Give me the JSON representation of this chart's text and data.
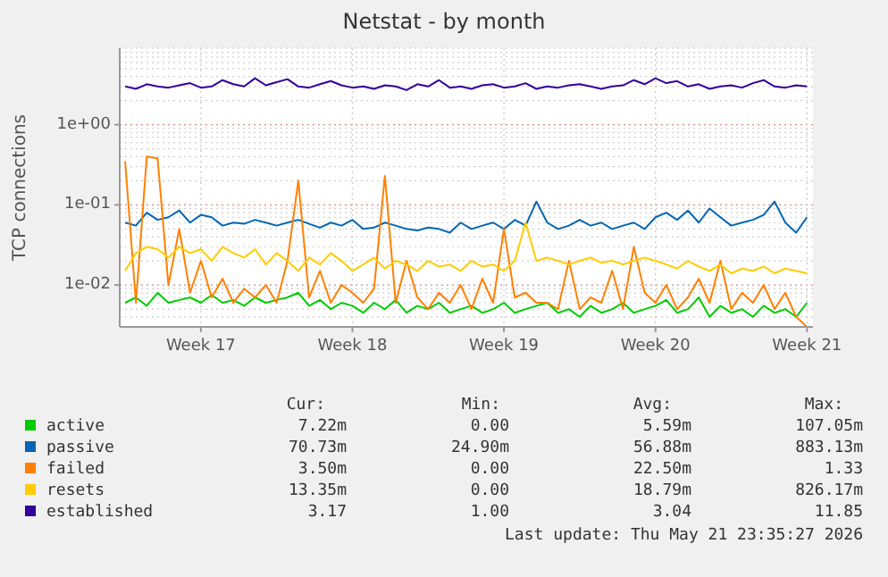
{
  "chart_data": {
    "type": "line",
    "title": "Netstat - by month",
    "ylabel": "TCP connections",
    "log": true,
    "grid": true,
    "legend": "bottom",
    "line_style": "solid",
    "categories": [
      null,
      null,
      null,
      null,
      null,
      null,
      null,
      "Week 17",
      null,
      null,
      null,
      null,
      null,
      null,
      null,
      null,
      null,
      null,
      null,
      null,
      null,
      "Week 18",
      null,
      null,
      null,
      null,
      null,
      null,
      null,
      null,
      null,
      null,
      null,
      null,
      null,
      "Week 19",
      null,
      null,
      null,
      null,
      null,
      null,
      null,
      null,
      null,
      null,
      null,
      null,
      null,
      "Week 20",
      null,
      null,
      null,
      null,
      null,
      null,
      null,
      null,
      null,
      null,
      null,
      null,
      null,
      "Week 21"
    ],
    "ylim": [
      0.003,
      9
    ],
    "yticks": [
      {
        "value": 0.01,
        "label": "1e-02"
      },
      {
        "value": 0.1,
        "label": "1e-01"
      },
      {
        "value": 1,
        "label": "1e+00"
      }
    ],
    "series": [
      {
        "name": "active",
        "color": "#00cc00",
        "values": [
          0.006,
          0.007,
          0.0055,
          0.008,
          0.006,
          0.0065,
          0.007,
          0.006,
          0.0075,
          0.006,
          0.0065,
          0.0055,
          0.007,
          0.006,
          0.0065,
          0.007,
          0.008,
          0.0055,
          0.0065,
          0.005,
          0.006,
          0.0055,
          0.0045,
          0.006,
          0.005,
          0.0065,
          0.0045,
          0.0055,
          0.005,
          0.006,
          0.0045,
          0.005,
          0.0055,
          0.0045,
          0.005,
          0.006,
          0.0045,
          0.005,
          0.0055,
          0.006,
          0.0045,
          0.005,
          0.004,
          0.0055,
          0.0045,
          0.005,
          0.006,
          0.0045,
          0.005,
          0.0055,
          0.0065,
          0.0045,
          0.005,
          0.007,
          0.004,
          0.0055,
          0.0045,
          0.005,
          0.004,
          0.0055,
          0.0045,
          0.005,
          0.004,
          0.006
        ]
      },
      {
        "name": "passive",
        "color": "#0066b3",
        "values": [
          0.06,
          0.055,
          0.08,
          0.065,
          0.07,
          0.085,
          0.06,
          0.075,
          0.07,
          0.055,
          0.06,
          0.058,
          0.065,
          0.06,
          0.055,
          0.06,
          0.065,
          0.058,
          0.052,
          0.06,
          0.055,
          0.065,
          0.05,
          0.052,
          0.06,
          0.055,
          0.05,
          0.048,
          0.052,
          0.05,
          0.045,
          0.06,
          0.05,
          0.055,
          0.06,
          0.05,
          0.065,
          0.055,
          0.11,
          0.06,
          0.05,
          0.055,
          0.065,
          0.055,
          0.06,
          0.05,
          0.055,
          0.06,
          0.05,
          0.07,
          0.08,
          0.065,
          0.085,
          0.06,
          0.09,
          0.07,
          0.055,
          0.06,
          0.065,
          0.075,
          0.11,
          0.06,
          0.045,
          0.07
        ]
      },
      {
        "name": "failed",
        "color": "#ff8000",
        "values": [
          0.35,
          0.006,
          0.4,
          0.38,
          0.01,
          0.05,
          0.008,
          0.02,
          0.007,
          0.012,
          0.006,
          0.009,
          0.007,
          0.01,
          0.006,
          0.02,
          0.2,
          0.007,
          0.015,
          0.006,
          0.01,
          0.008,
          0.006,
          0.009,
          0.23,
          0.006,
          0.02,
          0.007,
          0.005,
          0.008,
          0.006,
          0.01,
          0.005,
          0.012,
          0.006,
          0.05,
          0.007,
          0.008,
          0.006,
          0.006,
          0.005,
          0.02,
          0.005,
          0.007,
          0.006,
          0.015,
          0.005,
          0.03,
          0.008,
          0.006,
          0.01,
          0.005,
          0.007,
          0.012,
          0.006,
          0.02,
          0.005,
          0.008,
          0.006,
          0.01,
          0.005,
          0.008,
          0.004,
          0.003
        ]
      },
      {
        "name": "resets",
        "color": "#ffcc00",
        "values": [
          0.015,
          0.025,
          0.03,
          0.028,
          0.022,
          0.03,
          0.025,
          0.028,
          0.02,
          0.03,
          0.025,
          0.022,
          0.028,
          0.018,
          0.025,
          0.02,
          0.015,
          0.022,
          0.018,
          0.025,
          0.02,
          0.015,
          0.018,
          0.022,
          0.016,
          0.02,
          0.018,
          0.015,
          0.02,
          0.017,
          0.018,
          0.015,
          0.02,
          0.017,
          0.018,
          0.015,
          0.02,
          0.06,
          0.02,
          0.022,
          0.02,
          0.018,
          0.02,
          0.022,
          0.019,
          0.02,
          0.018,
          0.02,
          0.022,
          0.02,
          0.018,
          0.016,
          0.02,
          0.017,
          0.015,
          0.018,
          0.014,
          0.016,
          0.015,
          0.017,
          0.014,
          0.016,
          0.015,
          0.014
        ]
      },
      {
        "name": "established",
        "color": "#330099",
        "values": [
          3.0,
          2.8,
          3.2,
          3.0,
          2.9,
          3.1,
          3.3,
          2.9,
          3.0,
          3.6,
          3.2,
          3.0,
          3.8,
          3.1,
          3.4,
          3.7,
          3.0,
          2.9,
          3.2,
          3.5,
          3.1,
          2.9,
          3.0,
          2.8,
          3.1,
          3.0,
          2.7,
          3.2,
          3.0,
          3.6,
          2.9,
          3.0,
          2.8,
          3.1,
          3.2,
          2.9,
          3.0,
          3.3,
          2.8,
          3.0,
          2.9,
          3.1,
          3.2,
          3.0,
          2.8,
          3.0,
          3.1,
          3.6,
          3.2,
          3.8,
          3.3,
          3.5,
          3.0,
          3.2,
          2.8,
          3.0,
          3.1,
          2.9,
          3.3,
          3.6,
          3.0,
          2.9,
          3.1,
          3.0
        ]
      }
    ],
    "annotations": [
      "Cur:",
      "Min:",
      "Avg:",
      "Max:",
      "7.22m",
      "0.00",
      "5.59m",
      "107.05m",
      "70.73m",
      "24.90m",
      "56.88m",
      "883.13m",
      "3.50m",
      "0.00",
      "22.50m",
      "1.33",
      "13.35m",
      "0.00",
      "18.79m",
      "826.17m",
      "3.17",
      "1.00",
      "3.04",
      "11.85",
      "Last update: Thu May 21 23:35:27 2026"
    ]
  }
}
